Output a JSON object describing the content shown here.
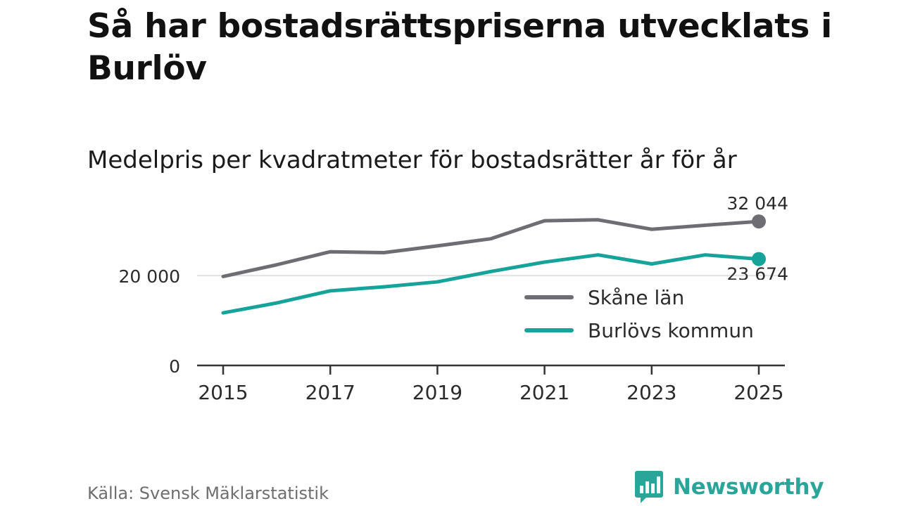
{
  "header": {
    "title": "Så har bostadsrättspriserna utvecklats i Burlöv",
    "subtitle": "Medelpris per kvadratmeter för bostadsrätter år för år"
  },
  "footer": {
    "source": "Källa: Svensk Mäklarstatistik",
    "brand": "Newsworthy",
    "brand_color": "#2aa59a"
  },
  "chart_data": {
    "type": "line",
    "title": "Medelpris per kvadratmeter för bostadsrätter år för år",
    "xlabel": "",
    "ylabel": "",
    "x": [
      2015,
      2016,
      2017,
      2018,
      2019,
      2020,
      2021,
      2022,
      2023,
      2024,
      2025
    ],
    "x_ticks": [
      "2015",
      "2017",
      "2019",
      "2021",
      "2023",
      "2025"
    ],
    "y_ticks": [
      {
        "value": 0,
        "label": "0"
      },
      {
        "value": 20000,
        "label": "20 000"
      }
    ],
    "ylim": [
      0,
      38000
    ],
    "grid": "horizontal at 20 000",
    "legend_position": "right",
    "series": [
      {
        "name": "Skåne län",
        "color": "#6e6d74",
        "values": [
          19800,
          22400,
          25300,
          25100,
          26600,
          28200,
          32200,
          32400,
          30300,
          31200,
          32044
        ],
        "end_label": "32 044"
      },
      {
        "name": "Burlövs kommun",
        "color": "#16a39a",
        "values": [
          11700,
          13900,
          16600,
          17500,
          18600,
          20900,
          23000,
          24600,
          22600,
          24600,
          23674
        ],
        "end_label": "23 674"
      }
    ]
  }
}
